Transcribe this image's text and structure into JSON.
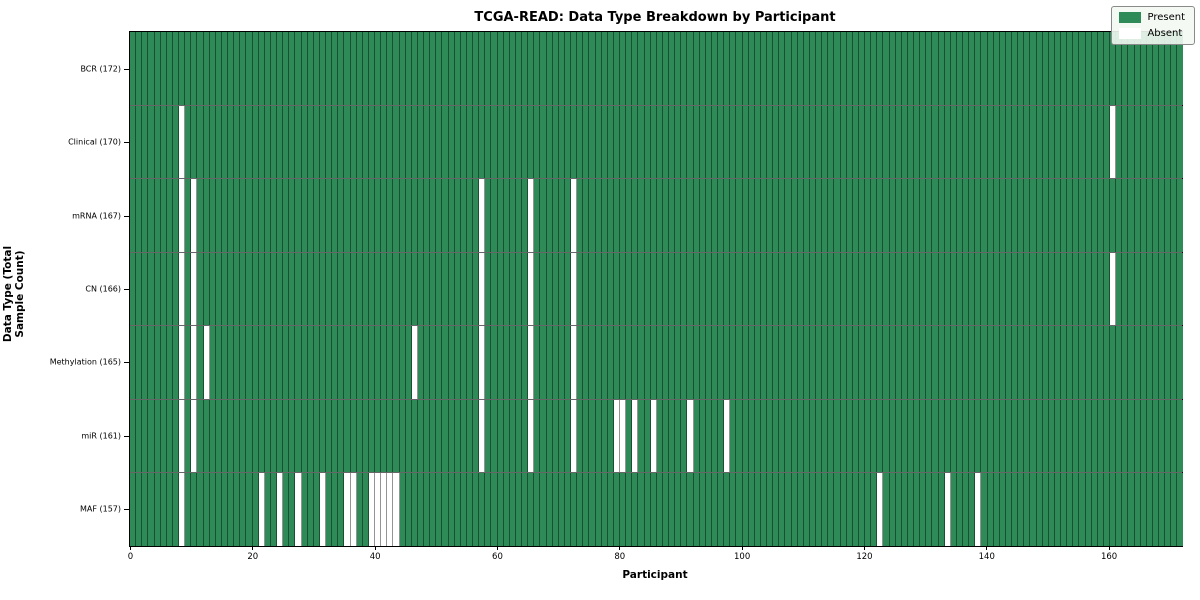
{
  "chart_data": {
    "type": "heatmap",
    "title": "TCGA-READ: Data Type Breakdown by Participant",
    "xlabel": "Participant",
    "ylabel": "Data Type (Total Sample Count)",
    "n_participants": 172,
    "x_ticks": [
      0,
      20,
      40,
      60,
      80,
      100,
      120,
      140,
      160
    ],
    "legend": [
      {
        "label": "Present",
        "color": "#2e8b57"
      },
      {
        "label": "Absent",
        "color": "#ffffff"
      }
    ],
    "colors": {
      "present": "#2e8b57",
      "absent": "#ffffff",
      "grid_vertical": "rgba(0,0,0,0.42)",
      "grid_horizontal": "rgba(0,0,0,0.6)",
      "plot_border": "#000000"
    },
    "rows": [
      {
        "label": "BCR (172)",
        "data_type": "BCR",
        "total_sample_count": 172,
        "absent_participants": []
      },
      {
        "label": "Clinical (170)",
        "data_type": "Clinical",
        "total_sample_count": 170,
        "absent_participants": [
          8,
          160
        ]
      },
      {
        "label": "mRNA (167)",
        "data_type": "mRNA",
        "total_sample_count": 167,
        "absent_participants": [
          8,
          10,
          57,
          65,
          72
        ]
      },
      {
        "label": "CN (166)",
        "data_type": "CN",
        "total_sample_count": 166,
        "absent_participants": [
          8,
          10,
          57,
          65,
          72,
          160
        ]
      },
      {
        "label": "Methylation (165)",
        "data_type": "Methylation",
        "total_sample_count": 165,
        "absent_participants": [
          8,
          10,
          12,
          46,
          57,
          65,
          72
        ]
      },
      {
        "label": "miR (161)",
        "data_type": "miR",
        "total_sample_count": 161,
        "absent_participants": [
          8,
          10,
          57,
          65,
          72,
          79,
          80,
          82,
          85,
          91,
          97
        ]
      },
      {
        "label": "MAF (157)",
        "data_type": "MAF",
        "total_sample_count": 157,
        "absent_participants": [
          8,
          21,
          24,
          27,
          31,
          35,
          36,
          39,
          40,
          41,
          42,
          43,
          122,
          133,
          138
        ]
      }
    ]
  }
}
